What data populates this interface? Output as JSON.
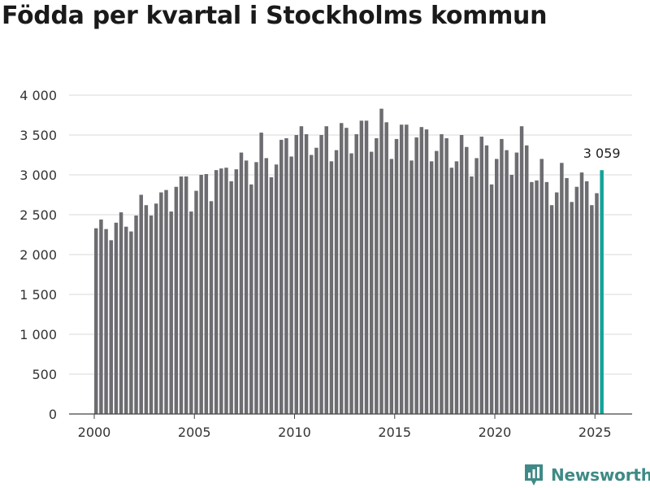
{
  "page_title": "Födda per kvartal i Stockholms kommun",
  "brand": {
    "name": "Newsworthy",
    "icon": "newsworthy-logo-icon",
    "color": "#3f8a86"
  },
  "chart_data": {
    "type": "bar",
    "title": "Födda per kvartal i Stockholms kommun",
    "xlabel": "",
    "ylabel": "",
    "x_unit": "quarter",
    "start_quarter": "2000-Q1",
    "categories": [
      "2000-Q1",
      "2000-Q2",
      "2000-Q3",
      "2000-Q4",
      "2001-Q1",
      "2001-Q2",
      "2001-Q3",
      "2001-Q4",
      "2002-Q1",
      "2002-Q2",
      "2002-Q3",
      "2002-Q4",
      "2003-Q1",
      "2003-Q2",
      "2003-Q3",
      "2003-Q4",
      "2004-Q1",
      "2004-Q2",
      "2004-Q3",
      "2004-Q4",
      "2005-Q1",
      "2005-Q2",
      "2005-Q3",
      "2005-Q4",
      "2006-Q1",
      "2006-Q2",
      "2006-Q3",
      "2006-Q4",
      "2007-Q1",
      "2007-Q2",
      "2007-Q3",
      "2007-Q4",
      "2008-Q1",
      "2008-Q2",
      "2008-Q3",
      "2008-Q4",
      "2009-Q1",
      "2009-Q2",
      "2009-Q3",
      "2009-Q4",
      "2010-Q1",
      "2010-Q2",
      "2010-Q3",
      "2010-Q4",
      "2011-Q1",
      "2011-Q2",
      "2011-Q3",
      "2011-Q4",
      "2012-Q1",
      "2012-Q2",
      "2012-Q3",
      "2012-Q4",
      "2013-Q1",
      "2013-Q2",
      "2013-Q3",
      "2013-Q4",
      "2014-Q1",
      "2014-Q2",
      "2014-Q3",
      "2014-Q4",
      "2015-Q1",
      "2015-Q2",
      "2015-Q3",
      "2015-Q4",
      "2016-Q1",
      "2016-Q2",
      "2016-Q3",
      "2016-Q4",
      "2017-Q1",
      "2017-Q2",
      "2017-Q3",
      "2017-Q4",
      "2018-Q1",
      "2018-Q2",
      "2018-Q3",
      "2018-Q4",
      "2019-Q1",
      "2019-Q2",
      "2019-Q3",
      "2019-Q4",
      "2020-Q1",
      "2020-Q2",
      "2020-Q3",
      "2020-Q4",
      "2021-Q1",
      "2021-Q2",
      "2021-Q3",
      "2021-Q4",
      "2022-Q1",
      "2022-Q2",
      "2022-Q3",
      "2022-Q4",
      "2023-Q1",
      "2023-Q2",
      "2023-Q3",
      "2023-Q4",
      "2024-Q1",
      "2024-Q2",
      "2024-Q3",
      "2024-Q4",
      "2025-Q1",
      "2025-Q2"
    ],
    "values": [
      2330,
      2440,
      2320,
      2180,
      2400,
      2530,
      2350,
      2290,
      2490,
      2750,
      2620,
      2490,
      2640,
      2780,
      2810,
      2540,
      2850,
      2980,
      2980,
      2540,
      2800,
      3000,
      3010,
      2670,
      3060,
      3080,
      3090,
      2920,
      3070,
      3280,
      3180,
      2880,
      3160,
      3530,
      3210,
      2970,
      3130,
      3440,
      3460,
      3230,
      3500,
      3610,
      3510,
      3250,
      3340,
      3500,
      3610,
      3170,
      3310,
      3650,
      3590,
      3270,
      3510,
      3680,
      3680,
      3290,
      3460,
      3830,
      3660,
      3200,
      3450,
      3630,
      3630,
      3180,
      3470,
      3600,
      3570,
      3170,
      3300,
      3510,
      3460,
      3090,
      3170,
      3500,
      3350,
      2980,
      3210,
      3480,
      3370,
      2880,
      3200,
      3450,
      3310,
      3000,
      3280,
      3610,
      3370,
      2910,
      2930,
      3200,
      2910,
      2620,
      2780,
      3150,
      2960,
      2660,
      2850,
      3030,
      2920,
      2620,
      2770,
      3059
    ],
    "bar_color": "#6d6d71",
    "highlight_color": "#12a39a",
    "highlight_label": "3 059",
    "ylim": [
      0,
      4000
    ],
    "yticks": [
      0,
      500,
      1000,
      1500,
      2000,
      2500,
      3000,
      3500,
      4000
    ],
    "ytick_labels": [
      "0",
      "500",
      "1 000",
      "1 500",
      "2 000",
      "2 500",
      "3 000",
      "3 500",
      "4 000"
    ],
    "xticks": [
      2000,
      2005,
      2010,
      2015,
      2020,
      2025
    ],
    "xtick_labels": [
      "2000",
      "2005",
      "2010",
      "2015",
      "2020",
      "2025"
    ],
    "grid": true,
    "legend": "none"
  }
}
